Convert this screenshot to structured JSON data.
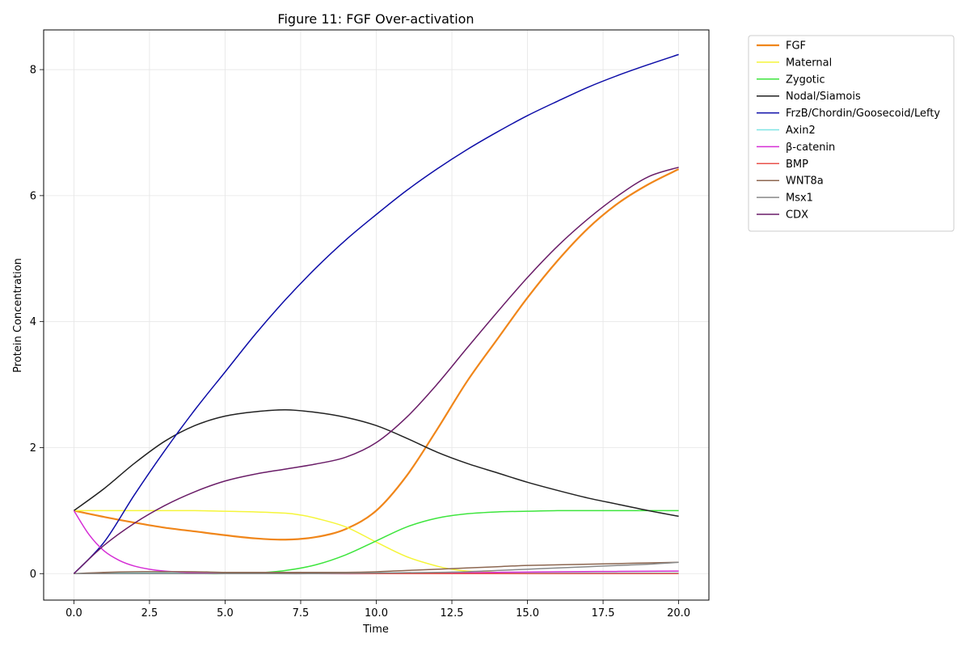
{
  "chart_data": {
    "type": "line",
    "title": "Figure 11: FGF Over-activation",
    "xlabel": "Time",
    "ylabel": "Protein Concentration",
    "xlim": [
      -1,
      21
    ],
    "ylim": [
      -0.42,
      8.63
    ],
    "xticks": [
      "0.0",
      "2.5",
      "5.0",
      "7.5",
      "10.0",
      "12.5",
      "15.0",
      "17.5",
      "20.0"
    ],
    "yticks": [
      "0",
      "2",
      "4",
      "6",
      "8"
    ],
    "grid": true,
    "legend_position": "outside-top-right",
    "series": [
      {
        "name": "FGF",
        "color": "#f0861a",
        "width": 2.2,
        "x": [
          0,
          1,
          2,
          3,
          4,
          5,
          6,
          7,
          8,
          9,
          10,
          11,
          12,
          13,
          14,
          15,
          16,
          17,
          18,
          19,
          20
        ],
        "y": [
          1.0,
          0.9,
          0.81,
          0.73,
          0.67,
          0.61,
          0.56,
          0.54,
          0.58,
          0.71,
          1.0,
          1.55,
          2.28,
          3.05,
          3.72,
          4.38,
          4.97,
          5.48,
          5.88,
          6.18,
          6.42
        ]
      },
      {
        "name": "Maternal",
        "color": "#f5f53a",
        "width": 1.5,
        "x": [
          0,
          1,
          2,
          3,
          4,
          5,
          6,
          7,
          7.5,
          8,
          9,
          10,
          11,
          12,
          12.5,
          13,
          14,
          15,
          16,
          17,
          18,
          19,
          20
        ],
        "y": [
          1.0,
          1.0,
          1.0,
          1.0,
          1.0,
          0.99,
          0.98,
          0.96,
          0.93,
          0.88,
          0.74,
          0.5,
          0.27,
          0.12,
          0.07,
          0.04,
          0.02,
          0.01,
          0.01,
          0.01,
          0.01,
          0.01,
          0.01
        ]
      },
      {
        "name": "Zygotic",
        "color": "#3de53d",
        "width": 1.5,
        "x": [
          0,
          1,
          2,
          3,
          4,
          5,
          6,
          7,
          8,
          9,
          10,
          11,
          12,
          13,
          14,
          15,
          16,
          17,
          18,
          19,
          20
        ],
        "y": [
          0.0,
          0.0,
          0.0,
          0.0,
          0.0,
          0.0,
          0.01,
          0.05,
          0.14,
          0.3,
          0.52,
          0.74,
          0.88,
          0.95,
          0.98,
          0.99,
          1.0,
          1.0,
          1.0,
          1.0,
          1.0
        ]
      },
      {
        "name": "Nodal/Siamois",
        "color": "#222222",
        "width": 1.5,
        "x": [
          0,
          1,
          2,
          3,
          4,
          5,
          6,
          7,
          8,
          9,
          10,
          11,
          12,
          13,
          14,
          15,
          16,
          17,
          18,
          19,
          20
        ],
        "y": [
          1.0,
          1.35,
          1.75,
          2.1,
          2.35,
          2.5,
          2.57,
          2.6,
          2.56,
          2.48,
          2.35,
          2.15,
          1.93,
          1.75,
          1.6,
          1.45,
          1.32,
          1.2,
          1.1,
          1.0,
          0.91
        ]
      },
      {
        "name": "FrzB/Chordin/Goosecoid/Lefty",
        "color": "#0d0da8",
        "width": 1.5,
        "x": [
          0,
          1,
          2,
          3,
          4,
          5,
          6,
          7,
          8,
          9,
          10,
          11,
          12,
          13,
          14,
          15,
          16,
          17,
          18,
          19,
          20
        ],
        "y": [
          0.0,
          0.5,
          1.25,
          1.95,
          2.6,
          3.2,
          3.8,
          4.35,
          4.85,
          5.3,
          5.7,
          6.08,
          6.42,
          6.73,
          7.01,
          7.27,
          7.5,
          7.72,
          7.91,
          8.08,
          8.24
        ]
      },
      {
        "name": "Axin2",
        "color": "#7fe5e5",
        "width": 1.5,
        "x": [
          0,
          1,
          2,
          3,
          4,
          5,
          6,
          7,
          8,
          9,
          10,
          11,
          12,
          13,
          14,
          15,
          16,
          17,
          18,
          19,
          20
        ],
        "y": [
          0.0,
          0.01,
          0.01,
          0.01,
          0.01,
          0.01,
          0.01,
          0.01,
          0.01,
          0.01,
          0.01,
          0.01,
          0.01,
          0.01,
          0.01,
          0.01,
          0.01,
          0.01,
          0.01,
          0.01,
          0.01
        ]
      },
      {
        "name": "β-catenin",
        "color": "#d52ed5",
        "width": 1.5,
        "x": [
          0,
          0.5,
          1,
          1.5,
          2,
          2.5,
          3,
          3.5,
          4,
          5,
          6,
          8,
          10,
          12,
          14,
          16,
          18,
          20
        ],
        "y": [
          1.0,
          0.62,
          0.36,
          0.21,
          0.12,
          0.07,
          0.04,
          0.025,
          0.015,
          0.01,
          0.005,
          0.0,
          0.0,
          0.01,
          0.02,
          0.03,
          0.035,
          0.04
        ]
      },
      {
        "name": "BMP",
        "color": "#e8504a",
        "width": 1.5,
        "x": [
          0,
          2,
          4,
          6,
          8,
          10,
          12,
          14,
          16,
          18,
          20
        ],
        "y": [
          0.0,
          0.0,
          0.0,
          0.0,
          0.0,
          0.0,
          0.0,
          0.0,
          0.0,
          0.0,
          0.0
        ]
      },
      {
        "name": "WNT8a",
        "color": "#8c6650",
        "width": 1.5,
        "x": [
          0,
          1,
          2,
          3,
          4,
          5,
          6,
          7,
          8,
          9,
          10,
          11,
          12,
          13,
          14,
          15,
          16,
          17,
          18,
          19,
          20
        ],
        "y": [
          0.0,
          0.02,
          0.03,
          0.03,
          0.03,
          0.02,
          0.02,
          0.02,
          0.02,
          0.02,
          0.03,
          0.05,
          0.07,
          0.09,
          0.11,
          0.13,
          0.14,
          0.15,
          0.16,
          0.17,
          0.18
        ]
      },
      {
        "name": "Msx1",
        "color": "#888888",
        "width": 1.5,
        "x": [
          0,
          2,
          4,
          6,
          8,
          10,
          12,
          13,
          14,
          15,
          16,
          17,
          18,
          19,
          20
        ],
        "y": [
          0.0,
          0.0,
          0.0,
          0.0,
          0.0,
          0.01,
          0.02,
          0.03,
          0.05,
          0.07,
          0.09,
          0.11,
          0.13,
          0.15,
          0.18
        ]
      },
      {
        "name": "CDX",
        "color": "#6a1d68",
        "width": 1.5,
        "x": [
          0,
          1,
          2,
          3,
          4,
          5,
          6,
          7,
          8,
          9,
          10,
          11,
          12,
          13,
          14,
          15,
          16,
          17,
          18,
          19,
          20
        ],
        "y": [
          0.0,
          0.45,
          0.8,
          1.08,
          1.3,
          1.47,
          1.58,
          1.66,
          1.74,
          1.85,
          2.08,
          2.48,
          3.0,
          3.58,
          4.15,
          4.7,
          5.2,
          5.63,
          6.0,
          6.3,
          6.45
        ]
      }
    ]
  }
}
